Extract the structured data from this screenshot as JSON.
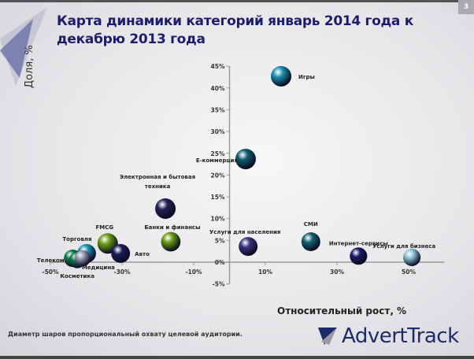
{
  "page_number": "3",
  "title": "Карта динамики категорий январь 2014 года к декабрю 2013 года",
  "footnote": "Диаметр шаров пропорциональный охвату целевой аудитории.",
  "logo_text": "AdvertTrack",
  "colors": {
    "title": "#1d1d6b",
    "axis": "#999999"
  },
  "chart_data": {
    "type": "scatter",
    "subtype": "bubble",
    "title": "Карта динамики категорий январь 2014 года к декабрю 2013 года",
    "xlabel": "Относительный рост, %",
    "ylabel": "Доля, %",
    "xlim": [
      -55,
      60
    ],
    "ylim": [
      -5,
      45
    ],
    "x_ticks": [
      -50,
      -30,
      -10,
      10,
      30,
      50
    ],
    "x_tick_labels": [
      "-50%",
      "-30%",
      "-10%",
      "10%",
      "30%",
      "50%"
    ],
    "y_ticks": [
      -5,
      0,
      5,
      10,
      15,
      20,
      25,
      30,
      35,
      40,
      45
    ],
    "y_tick_labels": [
      "-5%",
      "0%",
      "5%",
      "10%",
      "15%",
      "20%",
      "25%",
      "30%",
      "35%",
      "40%",
      "45%"
    ],
    "grid": false,
    "points": [
      {
        "label": "Игры",
        "x": 14.4,
        "y": 42.7,
        "size": 1.0,
        "color": "#1a8fb0"
      },
      {
        "label": "E-коммерция",
        "x": 4.5,
        "y": 23.7,
        "size": 1.0,
        "color": "#0f5e70"
      },
      {
        "label": "Электронная и бытовая техника",
        "x": -17.9,
        "y": 12.3,
        "size": 1.0,
        "color": "#222257"
      },
      {
        "label": "Банки и финансы",
        "x": -16.4,
        "y": 4.7,
        "size": 0.95,
        "color": "#6a9e12"
      },
      {
        "label": "Услуги для населения",
        "x": 5.2,
        "y": 3.6,
        "size": 0.92,
        "color": "#3a3480"
      },
      {
        "label": "СМИ",
        "x": 22.7,
        "y": 4.7,
        "size": 0.92,
        "color": "#11656f"
      },
      {
        "label": "Интернет-сервисы",
        "x": 36.0,
        "y": 1.4,
        "size": 0.85,
        "color": "#1b1b6a"
      },
      {
        "label": "Услуги для бизнеса",
        "x": 50.9,
        "y": 1.1,
        "size": 0.85,
        "color": "#8cc8d8"
      },
      {
        "label": "FMCG",
        "x": -34.0,
        "y": 4.3,
        "size": 1.0,
        "color": "#6a9e12"
      },
      {
        "label": "Авто",
        "x": -30.4,
        "y": 2.0,
        "size": 0.92,
        "color": "#1b1b5a"
      },
      {
        "label": "Торговля",
        "x": -39.9,
        "y": 2.0,
        "size": 0.92,
        "color": "#1a8fb0"
      },
      {
        "label": "Телеком",
        "x": -43.8,
        "y": 0.9,
        "size": 0.85,
        "color": "#137a4a"
      },
      {
        "label": "Косметика",
        "x": -42.5,
        "y": 0.5,
        "size": 0.8,
        "color": "#0f7a4e"
      },
      {
        "label": "Медицина",
        "x": -41.0,
        "y": 0.9,
        "size": 0.78,
        "color": "#9a9ab5"
      }
    ]
  }
}
